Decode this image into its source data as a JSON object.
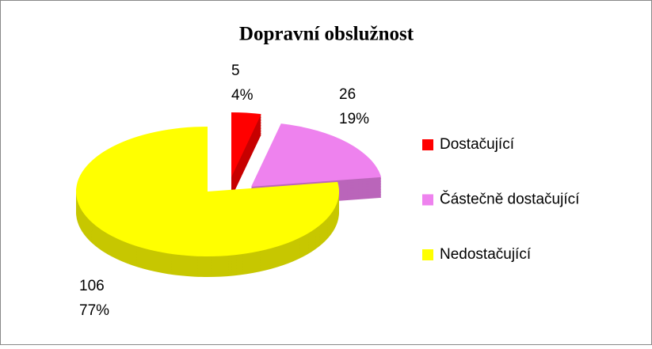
{
  "chart_data": {
    "type": "pie3d",
    "title": "Dopravní obslužnost",
    "categories": [
      "Dostačující",
      "Částečně dostačující",
      "Nedostačující"
    ],
    "values": [
      5,
      26,
      106
    ],
    "percent_labels": [
      "4%",
      "19%",
      "77%"
    ],
    "colors": [
      "#ff0000",
      "#ee82ee",
      "#ffff00"
    ],
    "legend": "right"
  }
}
